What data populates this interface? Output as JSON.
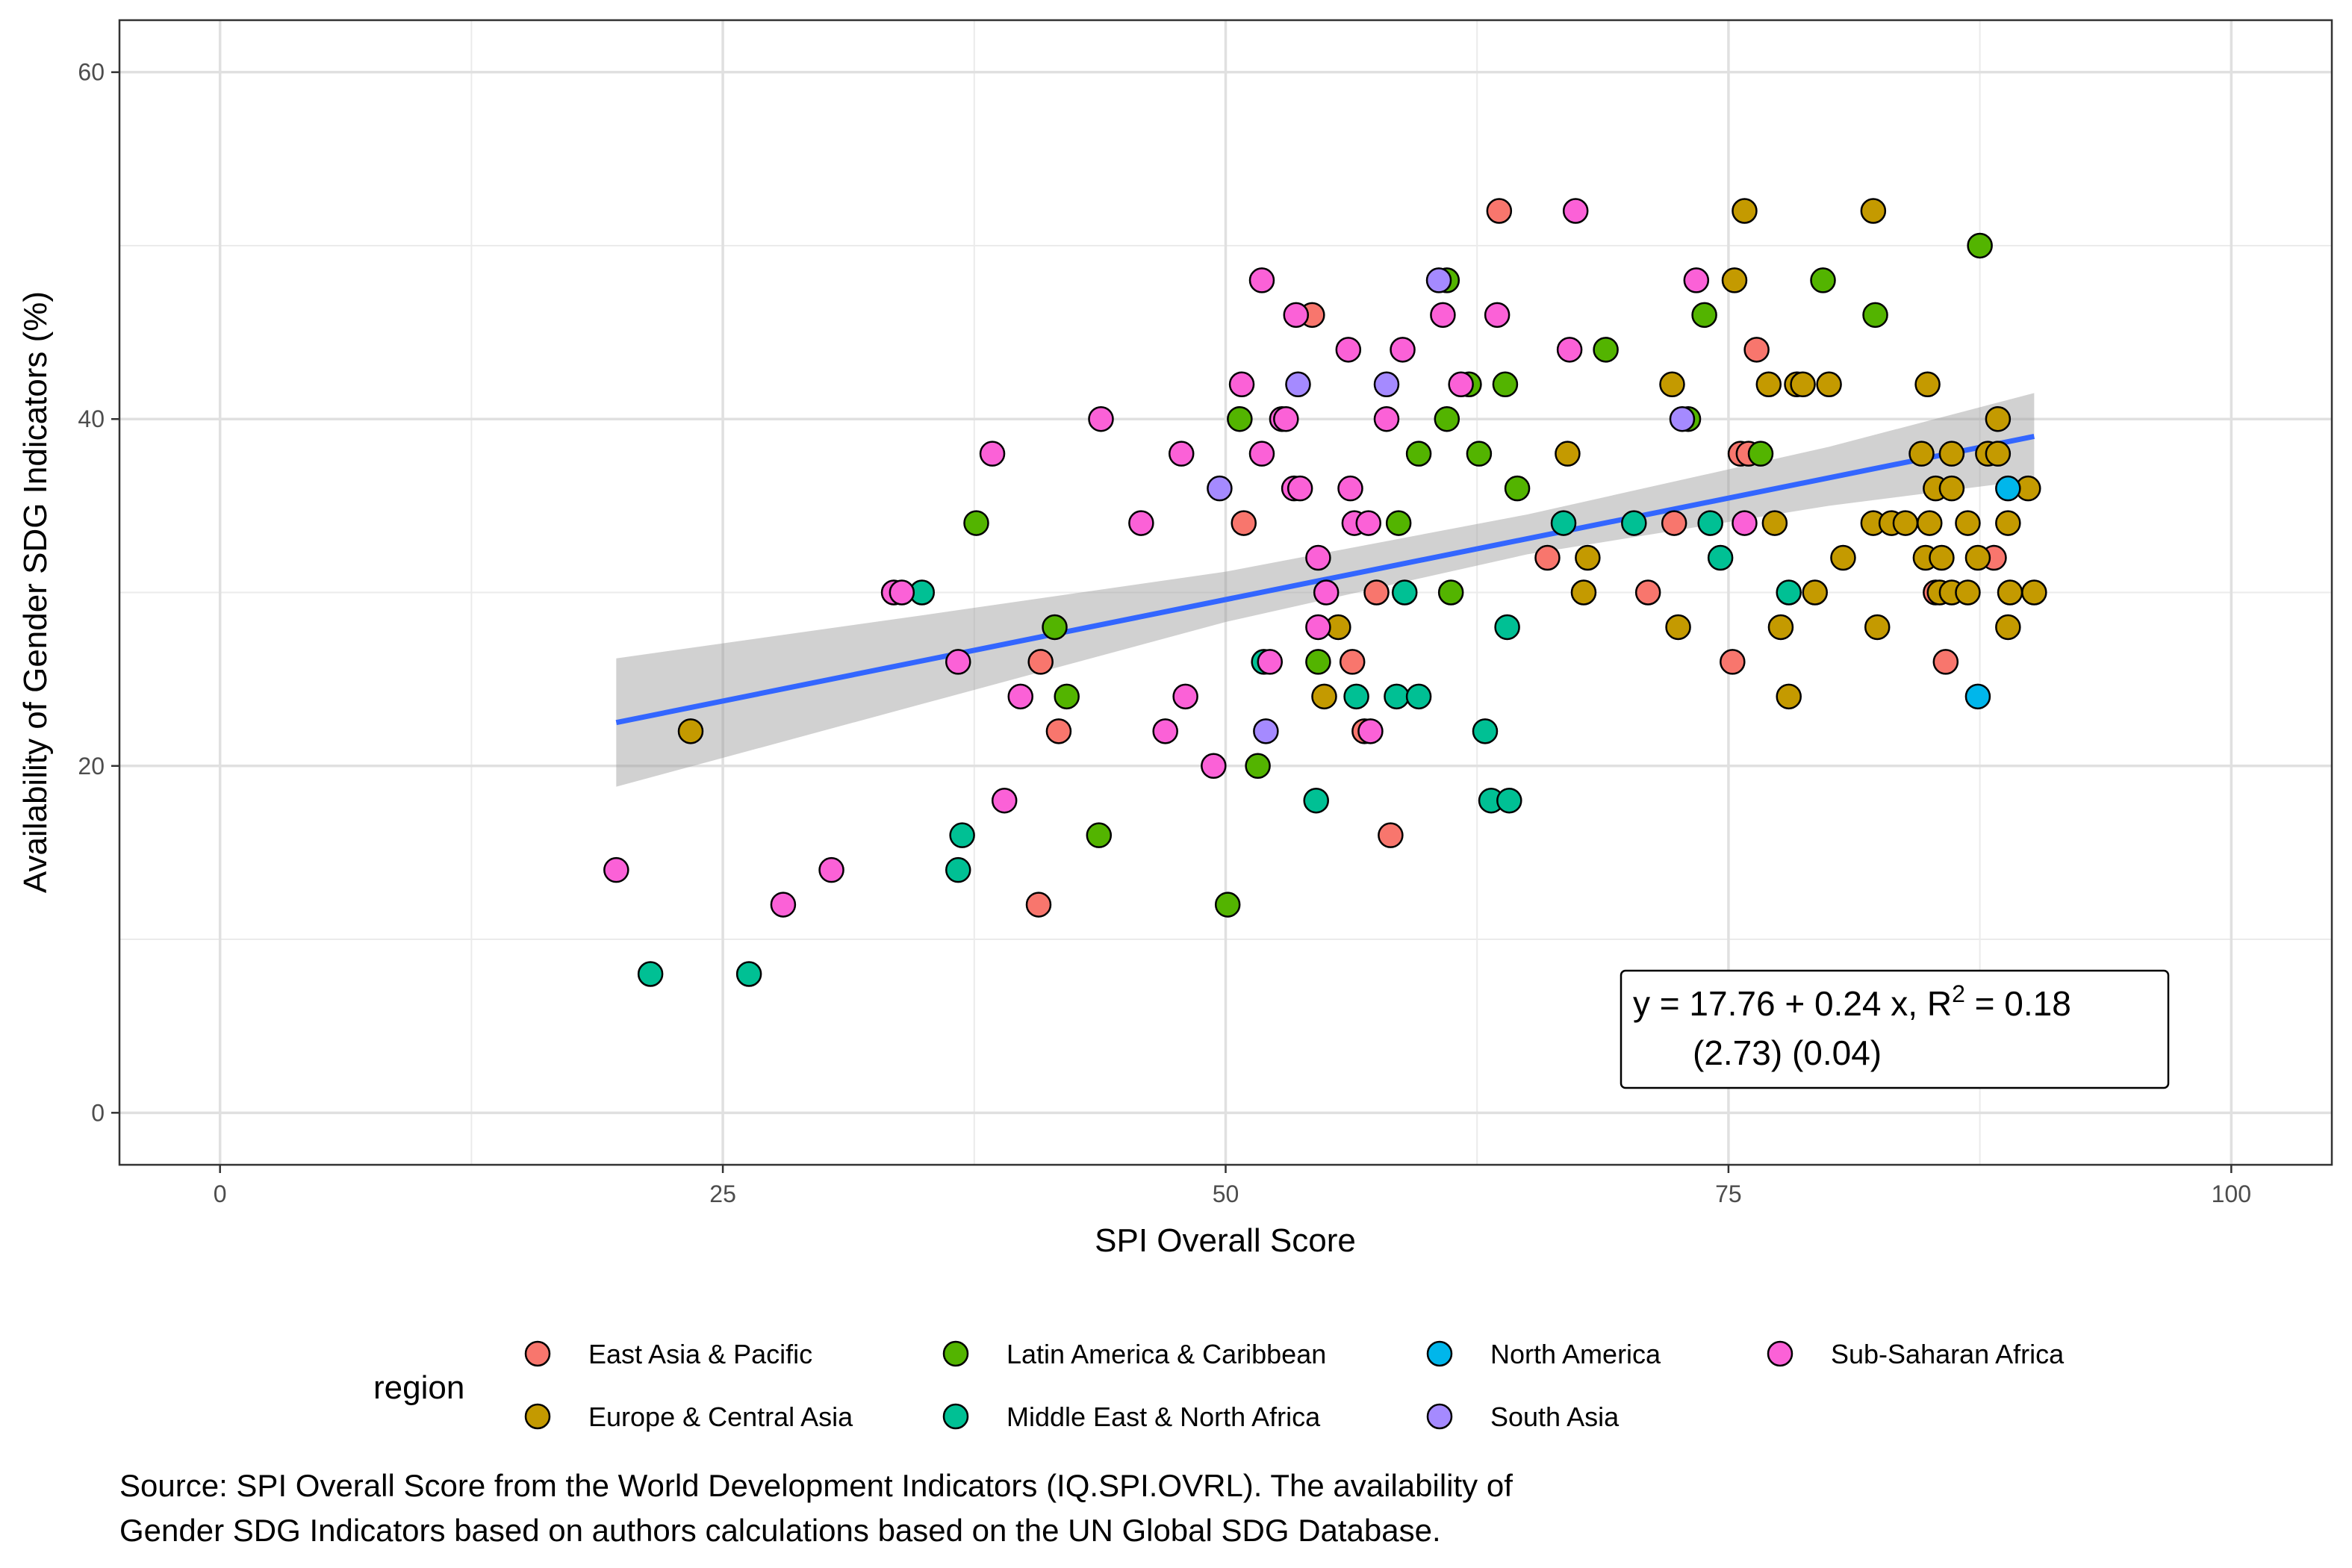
{
  "chart_data": {
    "type": "scatter",
    "xlabel": "SPI Overall Score",
    "ylabel": "Availability of Gender SDG Indicators (%)",
    "xlim": [
      -5,
      105
    ],
    "ylim": [
      -3,
      63
    ],
    "x_ticks": [
      0,
      25,
      50,
      75,
      100
    ],
    "y_ticks": [
      0,
      20,
      40,
      60
    ],
    "grid": true,
    "legend_placement": "bottom",
    "legend_title": "region",
    "regions": [
      {
        "name": "East Asia & Pacific",
        "color": "#F8766D"
      },
      {
        "name": "Europe & Central Asia",
        "color": "#C49A00"
      },
      {
        "name": "Latin America & Caribbean",
        "color": "#53B400"
      },
      {
        "name": "Middle East & North Africa",
        "color": "#00C094"
      },
      {
        "name": "North America",
        "color": "#00B6EB"
      },
      {
        "name": "South Asia",
        "color": "#A58AFF"
      },
      {
        "name": "Sub-Saharan Africa",
        "color": "#FB61D7"
      }
    ],
    "points": [
      {
        "region": "East Asia & Pacific",
        "x": 63.6,
        "y": 52
      },
      {
        "region": "East Asia & Pacific",
        "x": 54.3,
        "y": 46
      },
      {
        "region": "East Asia & Pacific",
        "x": 76.4,
        "y": 44
      },
      {
        "region": "East Asia & Pacific",
        "x": 75.6,
        "y": 38
      },
      {
        "region": "East Asia & Pacific",
        "x": 76.0,
        "y": 38
      },
      {
        "region": "East Asia & Pacific",
        "x": 50.9,
        "y": 34
      },
      {
        "region": "East Asia & Pacific",
        "x": 72.3,
        "y": 34
      },
      {
        "region": "East Asia & Pacific",
        "x": 66.0,
        "y": 32
      },
      {
        "region": "East Asia & Pacific",
        "x": 71.0,
        "y": 30
      },
      {
        "region": "East Asia & Pacific",
        "x": 57.5,
        "y": 30
      },
      {
        "region": "East Asia & Pacific",
        "x": 85.3,
        "y": 30
      },
      {
        "region": "East Asia & Pacific",
        "x": 88.2,
        "y": 32
      },
      {
        "region": "East Asia & Pacific",
        "x": 40.8,
        "y": 26
      },
      {
        "region": "East Asia & Pacific",
        "x": 56.3,
        "y": 26
      },
      {
        "region": "East Asia & Pacific",
        "x": 75.2,
        "y": 26
      },
      {
        "region": "East Asia & Pacific",
        "x": 85.8,
        "y": 26
      },
      {
        "region": "East Asia & Pacific",
        "x": 41.7,
        "y": 22
      },
      {
        "region": "East Asia & Pacific",
        "x": 56.9,
        "y": 22
      },
      {
        "region": "East Asia & Pacific",
        "x": 58.2,
        "y": 16
      },
      {
        "region": "East Asia & Pacific",
        "x": 40.7,
        "y": 12
      },
      {
        "region": "Europe & Central Asia",
        "x": 75.8,
        "y": 52
      },
      {
        "region": "Europe & Central Asia",
        "x": 82.2,
        "y": 52
      },
      {
        "region": "Europe & Central Asia",
        "x": 75.3,
        "y": 48
      },
      {
        "region": "Europe & Central Asia",
        "x": 72.2,
        "y": 42
      },
      {
        "region": "Europe & Central Asia",
        "x": 77.0,
        "y": 42
      },
      {
        "region": "Europe & Central Asia",
        "x": 78.4,
        "y": 42
      },
      {
        "region": "Europe & Central Asia",
        "x": 78.7,
        "y": 42
      },
      {
        "region": "Europe & Central Asia",
        "x": 80.0,
        "y": 42
      },
      {
        "region": "Europe & Central Asia",
        "x": 84.9,
        "y": 42
      },
      {
        "region": "Europe & Central Asia",
        "x": 67.0,
        "y": 38
      },
      {
        "region": "Europe & Central Asia",
        "x": 84.6,
        "y": 38
      },
      {
        "region": "Europe & Central Asia",
        "x": 86.1,
        "y": 38
      },
      {
        "region": "Europe & Central Asia",
        "x": 87.9,
        "y": 38
      },
      {
        "region": "Europe & Central Asia",
        "x": 88.4,
        "y": 38
      },
      {
        "region": "Europe & Central Asia",
        "x": 88.4,
        "y": 40
      },
      {
        "region": "Europe & Central Asia",
        "x": 85.3,
        "y": 36
      },
      {
        "region": "Europe & Central Asia",
        "x": 86.1,
        "y": 36
      },
      {
        "region": "Europe & Central Asia",
        "x": 89.9,
        "y": 36
      },
      {
        "region": "Europe & Central Asia",
        "x": 77.3,
        "y": 34
      },
      {
        "region": "Europe & Central Asia",
        "x": 82.2,
        "y": 34
      },
      {
        "region": "Europe & Central Asia",
        "x": 83.1,
        "y": 34
      },
      {
        "region": "Europe & Central Asia",
        "x": 83.8,
        "y": 34
      },
      {
        "region": "Europe & Central Asia",
        "x": 85.0,
        "y": 34
      },
      {
        "region": "Europe & Central Asia",
        "x": 86.9,
        "y": 34
      },
      {
        "region": "Europe & Central Asia",
        "x": 88.9,
        "y": 34
      },
      {
        "region": "Europe & Central Asia",
        "x": 68.0,
        "y": 32
      },
      {
        "region": "Europe & Central Asia",
        "x": 80.7,
        "y": 32
      },
      {
        "region": "Europe & Central Asia",
        "x": 84.8,
        "y": 32
      },
      {
        "region": "Europe & Central Asia",
        "x": 85.6,
        "y": 32
      },
      {
        "region": "Europe & Central Asia",
        "x": 87.4,
        "y": 32
      },
      {
        "region": "Europe & Central Asia",
        "x": 67.8,
        "y": 30
      },
      {
        "region": "Europe & Central Asia",
        "x": 79.3,
        "y": 30
      },
      {
        "region": "Europe & Central Asia",
        "x": 85.5,
        "y": 30
      },
      {
        "region": "Europe & Central Asia",
        "x": 86.1,
        "y": 30
      },
      {
        "region": "Europe & Central Asia",
        "x": 86.9,
        "y": 30
      },
      {
        "region": "Europe & Central Asia",
        "x": 89.0,
        "y": 30
      },
      {
        "region": "Europe & Central Asia",
        "x": 90.2,
        "y": 30
      },
      {
        "region": "Europe & Central Asia",
        "x": 55.6,
        "y": 28
      },
      {
        "region": "Europe & Central Asia",
        "x": 72.5,
        "y": 28
      },
      {
        "region": "Europe & Central Asia",
        "x": 77.6,
        "y": 28
      },
      {
        "region": "Europe & Central Asia",
        "x": 82.4,
        "y": 28
      },
      {
        "region": "Europe & Central Asia",
        "x": 88.9,
        "y": 28
      },
      {
        "region": "Europe & Central Asia",
        "x": 54.9,
        "y": 24
      },
      {
        "region": "Europe & Central Asia",
        "x": 78.0,
        "y": 24
      },
      {
        "region": "Europe & Central Asia",
        "x": 23.4,
        "y": 22
      },
      {
        "region": "Latin America & Caribbean",
        "x": 87.5,
        "y": 50
      },
      {
        "region": "Latin America & Caribbean",
        "x": 61.0,
        "y": 48
      },
      {
        "region": "Latin America & Caribbean",
        "x": 79.7,
        "y": 48
      },
      {
        "region": "Latin America & Caribbean",
        "x": 73.8,
        "y": 46
      },
      {
        "region": "Latin America & Caribbean",
        "x": 82.3,
        "y": 46
      },
      {
        "region": "Latin America & Caribbean",
        "x": 68.9,
        "y": 44
      },
      {
        "region": "Latin America & Caribbean",
        "x": 62.1,
        "y": 42
      },
      {
        "region": "Latin America & Caribbean",
        "x": 63.9,
        "y": 42
      },
      {
        "region": "Latin America & Caribbean",
        "x": 50.7,
        "y": 40
      },
      {
        "region": "Latin America & Caribbean",
        "x": 61.0,
        "y": 40
      },
      {
        "region": "Latin America & Caribbean",
        "x": 73.0,
        "y": 40
      },
      {
        "region": "Latin America & Caribbean",
        "x": 59.6,
        "y": 38
      },
      {
        "region": "Latin America & Caribbean",
        "x": 62.6,
        "y": 38
      },
      {
        "region": "Latin America & Caribbean",
        "x": 76.6,
        "y": 38
      },
      {
        "region": "Latin America & Caribbean",
        "x": 64.5,
        "y": 36
      },
      {
        "region": "Latin America & Caribbean",
        "x": 37.6,
        "y": 34
      },
      {
        "region": "Latin America & Caribbean",
        "x": 58.6,
        "y": 34
      },
      {
        "region": "Latin America & Caribbean",
        "x": 61.2,
        "y": 30
      },
      {
        "region": "Latin America & Caribbean",
        "x": 41.5,
        "y": 28
      },
      {
        "region": "Latin America & Caribbean",
        "x": 54.6,
        "y": 26
      },
      {
        "region": "Latin America & Caribbean",
        "x": 42.1,
        "y": 24
      },
      {
        "region": "Latin America & Caribbean",
        "x": 51.6,
        "y": 20
      },
      {
        "region": "Latin America & Caribbean",
        "x": 43.7,
        "y": 16
      },
      {
        "region": "Latin America & Caribbean",
        "x": 50.1,
        "y": 12
      },
      {
        "region": "Middle East & North Africa",
        "x": 34.9,
        "y": 30
      },
      {
        "region": "Middle East & North Africa",
        "x": 58.9,
        "y": 30
      },
      {
        "region": "Middle East & North Africa",
        "x": 78.0,
        "y": 30
      },
      {
        "region": "Middle East & North Africa",
        "x": 66.8,
        "y": 34
      },
      {
        "region": "Middle East & North Africa",
        "x": 70.3,
        "y": 34
      },
      {
        "region": "Middle East & North Africa",
        "x": 74.1,
        "y": 34
      },
      {
        "region": "Middle East & North Africa",
        "x": 74.6,
        "y": 32
      },
      {
        "region": "Middle East & North Africa",
        "x": 64.0,
        "y": 28
      },
      {
        "region": "Middle East & North Africa",
        "x": 51.9,
        "y": 26
      },
      {
        "region": "Middle East & North Africa",
        "x": 56.5,
        "y": 24
      },
      {
        "region": "Middle East & North Africa",
        "x": 58.5,
        "y": 24
      },
      {
        "region": "Middle East & North Africa",
        "x": 59.6,
        "y": 24
      },
      {
        "region": "Middle East & North Africa",
        "x": 62.9,
        "y": 22
      },
      {
        "region": "Middle East & North Africa",
        "x": 54.5,
        "y": 18
      },
      {
        "region": "Middle East & North Africa",
        "x": 63.2,
        "y": 18
      },
      {
        "region": "Middle East & North Africa",
        "x": 64.1,
        "y": 18
      },
      {
        "region": "Middle East & North Africa",
        "x": 36.9,
        "y": 16
      },
      {
        "region": "Middle East & North Africa",
        "x": 36.7,
        "y": 14
      },
      {
        "region": "Middle East & North Africa",
        "x": 21.4,
        "y": 8
      },
      {
        "region": "Middle East & North Africa",
        "x": 26.3,
        "y": 8
      },
      {
        "region": "North America",
        "x": 88.9,
        "y": 36
      },
      {
        "region": "North America",
        "x": 87.4,
        "y": 24
      },
      {
        "region": "South Asia",
        "x": 60.6,
        "y": 48
      },
      {
        "region": "South Asia",
        "x": 53.6,
        "y": 42
      },
      {
        "region": "South Asia",
        "x": 58.0,
        "y": 42
      },
      {
        "region": "South Asia",
        "x": 49.7,
        "y": 36
      },
      {
        "region": "South Asia",
        "x": 72.7,
        "y": 40
      },
      {
        "region": "South Asia",
        "x": 52.0,
        "y": 22
      },
      {
        "region": "Sub-Saharan Africa",
        "x": 67.4,
        "y": 52
      },
      {
        "region": "Sub-Saharan Africa",
        "x": 51.8,
        "y": 48
      },
      {
        "region": "Sub-Saharan Africa",
        "x": 73.4,
        "y": 48
      },
      {
        "region": "Sub-Saharan Africa",
        "x": 53.5,
        "y": 46
      },
      {
        "region": "Sub-Saharan Africa",
        "x": 60.8,
        "y": 46
      },
      {
        "region": "Sub-Saharan Africa",
        "x": 63.5,
        "y": 46
      },
      {
        "region": "Sub-Saharan Africa",
        "x": 56.1,
        "y": 44
      },
      {
        "region": "Sub-Saharan Africa",
        "x": 58.8,
        "y": 44
      },
      {
        "region": "Sub-Saharan Africa",
        "x": 67.1,
        "y": 44
      },
      {
        "region": "Sub-Saharan Africa",
        "x": 50.8,
        "y": 42
      },
      {
        "region": "Sub-Saharan Africa",
        "x": 61.7,
        "y": 42
      },
      {
        "region": "Sub-Saharan Africa",
        "x": 43.8,
        "y": 40
      },
      {
        "region": "Sub-Saharan Africa",
        "x": 52.8,
        "y": 40
      },
      {
        "region": "Sub-Saharan Africa",
        "x": 53.0,
        "y": 40
      },
      {
        "region": "Sub-Saharan Africa",
        "x": 58.0,
        "y": 40
      },
      {
        "region": "Sub-Saharan Africa",
        "x": 38.4,
        "y": 38
      },
      {
        "region": "Sub-Saharan Africa",
        "x": 47.8,
        "y": 38
      },
      {
        "region": "Sub-Saharan Africa",
        "x": 51.8,
        "y": 38
      },
      {
        "region": "Sub-Saharan Africa",
        "x": 53.4,
        "y": 36
      },
      {
        "region": "Sub-Saharan Africa",
        "x": 53.7,
        "y": 36
      },
      {
        "region": "Sub-Saharan Africa",
        "x": 56.2,
        "y": 36
      },
      {
        "region": "Sub-Saharan Africa",
        "x": 45.8,
        "y": 34
      },
      {
        "region": "Sub-Saharan Africa",
        "x": 56.4,
        "y": 34
      },
      {
        "region": "Sub-Saharan Africa",
        "x": 57.1,
        "y": 34
      },
      {
        "region": "Sub-Saharan Africa",
        "x": 75.8,
        "y": 34
      },
      {
        "region": "Sub-Saharan Africa",
        "x": 54.6,
        "y": 32
      },
      {
        "region": "Sub-Saharan Africa",
        "x": 33.5,
        "y": 30
      },
      {
        "region": "Sub-Saharan Africa",
        "x": 33.9,
        "y": 30
      },
      {
        "region": "Sub-Saharan Africa",
        "x": 55.0,
        "y": 30
      },
      {
        "region": "Sub-Saharan Africa",
        "x": 54.6,
        "y": 28
      },
      {
        "region": "Sub-Saharan Africa",
        "x": 36.7,
        "y": 26
      },
      {
        "region": "Sub-Saharan Africa",
        "x": 52.2,
        "y": 26
      },
      {
        "region": "Sub-Saharan Africa",
        "x": 39.8,
        "y": 24
      },
      {
        "region": "Sub-Saharan Africa",
        "x": 48.0,
        "y": 24
      },
      {
        "region": "Sub-Saharan Africa",
        "x": 47.0,
        "y": 22
      },
      {
        "region": "Sub-Saharan Africa",
        "x": 57.2,
        "y": 22
      },
      {
        "region": "Sub-Saharan Africa",
        "x": 49.4,
        "y": 20
      },
      {
        "region": "Sub-Saharan Africa",
        "x": 39.0,
        "y": 18
      },
      {
        "region": "Sub-Saharan Africa",
        "x": 19.7,
        "y": 14
      },
      {
        "region": "Sub-Saharan Africa",
        "x": 30.4,
        "y": 14
      },
      {
        "region": "Sub-Saharan Africa",
        "x": 28.0,
        "y": 12
      }
    ],
    "trend_line": {
      "color": "#3366FF",
      "x_start": 19.7,
      "y_start": 22.5,
      "x_end": 90.2,
      "y_end": 39.0,
      "confidence_band": [
        {
          "x": 19.7,
          "lower": 18.8,
          "upper": 26.2
        },
        {
          "x": 35,
          "lower": 23.6,
          "upper": 28.7
        },
        {
          "x": 50,
          "lower": 28.3,
          "upper": 31.2
        },
        {
          "x": 65,
          "lower": 32.2,
          "upper": 34.5
        },
        {
          "x": 80,
          "lower": 35.0,
          "upper": 38.4
        },
        {
          "x": 90.2,
          "lower": 36.5,
          "upper": 41.5
        }
      ],
      "band_color": "#999999"
    },
    "equation": {
      "line1": "y = 17.76 + 0.24 x, R",
      "superscript": "2",
      "line1_tail": " = 0.18",
      "line2": "(2.73) (0.04)"
    },
    "caption": [
      "Source: SPI Overall Score from the World Development Indicators (IQ.SPI.OVRL). The availability of",
      "Gender SDG Indicators based on authors calculations based on the UN Global SDG Database."
    ]
  }
}
